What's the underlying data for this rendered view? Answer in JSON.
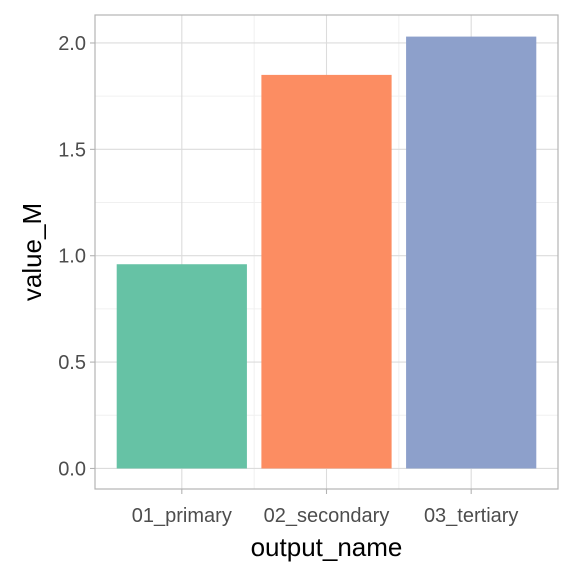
{
  "chart_data": {
    "type": "bar",
    "title": "",
    "xlabel": "output_name",
    "ylabel": "value_M",
    "categories": [
      "01_primary",
      "02_secondary",
      "03_tertiary"
    ],
    "values": [
      0.96,
      1.85,
      2.03
    ],
    "colors": [
      "#66c2a5",
      "#fc8d62",
      "#8da0cb"
    ],
    "ylim": [
      -0.0965,
      2.1315
    ],
    "yticks": [
      0.0,
      0.5,
      1.0,
      1.5,
      2.0
    ],
    "ytick_labels": [
      "0.0",
      "0.5",
      "1.0",
      "1.5",
      "2.0"
    ],
    "grid": true,
    "legend": "none"
  }
}
